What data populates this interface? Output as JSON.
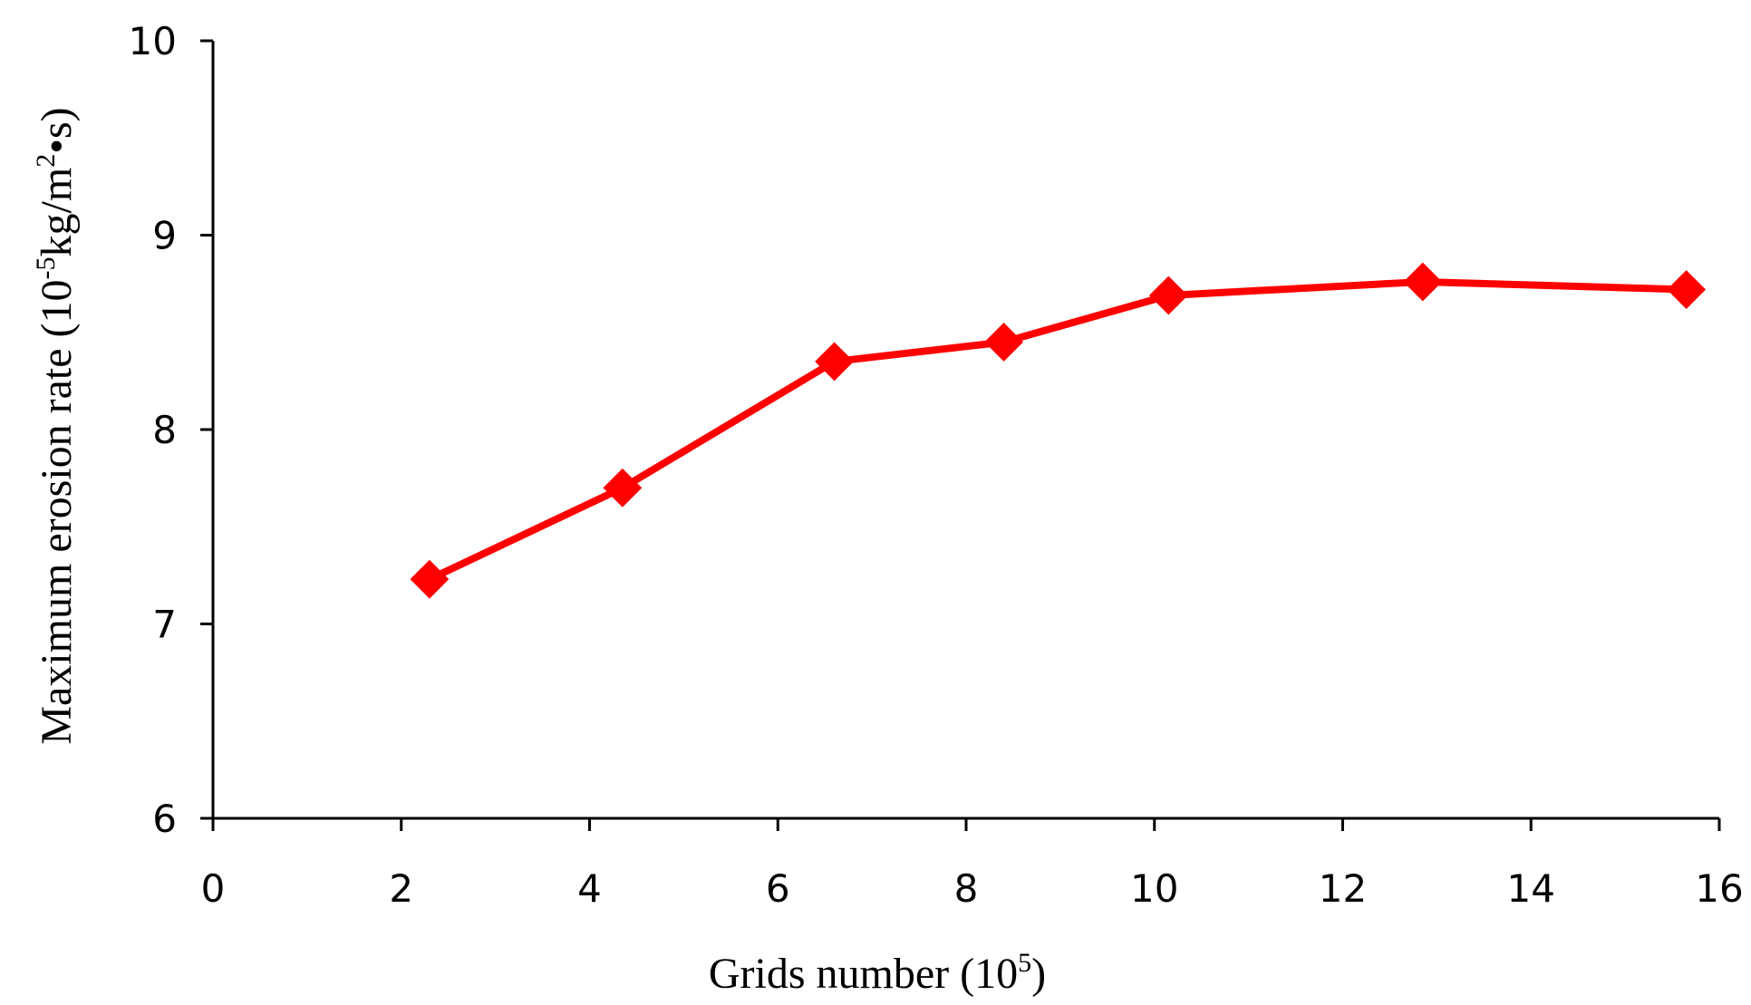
{
  "chart_data": {
    "type": "line",
    "title": "",
    "xlabel": "Grids number (10^5)",
    "ylabel": "Maximum erosion rate (10^-5 kg/m^2•s)",
    "xlim": [
      0,
      16
    ],
    "ylim": [
      6,
      10
    ],
    "x_ticks": [
      "0",
      "2",
      "4",
      "6",
      "8",
      "10",
      "12",
      "14",
      "16"
    ],
    "y_ticks": [
      "6",
      "7",
      "8",
      "9",
      "10"
    ],
    "grid": false,
    "legend": "none",
    "series": [
      {
        "color": "#ff0000",
        "marker": "diamond",
        "x": [
          2.3,
          4.35,
          6.6,
          8.4,
          10.15,
          12.85,
          15.65
        ],
        "y": [
          7.23,
          7.7,
          8.35,
          8.45,
          8.69,
          8.76,
          8.72
        ]
      }
    ]
  },
  "labels": {
    "xlabel_main": "Grids number (10",
    "xlabel_sup": "5",
    "xlabel_close": ")",
    "ylabel_main": "Maximum erosion rate (10",
    "ylabel_sup1": "-5",
    "ylabel_mid": "kg/m",
    "ylabel_sup2": "2",
    "ylabel_tail": "•s)"
  }
}
